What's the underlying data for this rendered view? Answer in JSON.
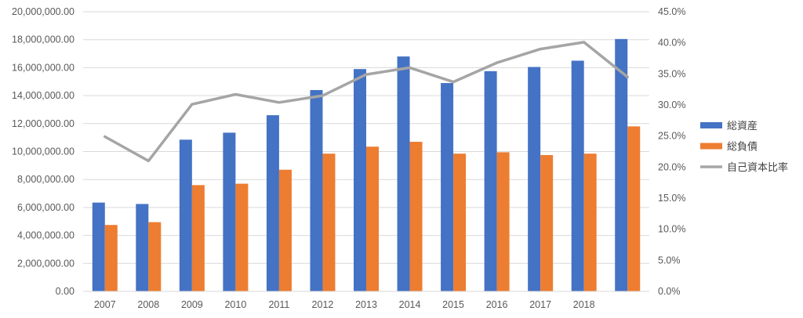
{
  "chart_data": {
    "type": "bar",
    "categories": [
      "2007",
      "2008",
      "2009",
      "2010",
      "2011",
      "2012",
      "2013",
      "2014",
      "2015",
      "2016",
      "2017",
      "2018",
      ""
    ],
    "series": [
      {
        "name": "総資産",
        "type": "bar",
        "axis": "left",
        "color": "#4472C4",
        "values": [
          6350000,
          6250000,
          10850000,
          11350000,
          12600000,
          14400000,
          15900000,
          16800000,
          14900000,
          15750000,
          16050000,
          16500000,
          18050000
        ]
      },
      {
        "name": "総負債",
        "type": "bar",
        "axis": "left",
        "color": "#ED7D31",
        "values": [
          4750000,
          4950000,
          7600000,
          7700000,
          8700000,
          9850000,
          10350000,
          10700000,
          9850000,
          9950000,
          9750000,
          9850000,
          11800000
        ]
      },
      {
        "name": "自己資本比率",
        "type": "line",
        "axis": "right",
        "color": "#A5A5A5",
        "values": [
          0.249,
          0.21,
          0.301,
          0.317,
          0.304,
          0.315,
          0.349,
          0.36,
          0.337,
          0.368,
          0.39,
          0.401,
          0.345
        ]
      }
    ],
    "left_axis": {
      "min": 0,
      "max": 20000000,
      "step": 2000000,
      "tick_labels": [
        "0.00",
        "2,000,000.00",
        "4,000,000.00",
        "6,000,000.00",
        "8,000,000.00",
        "10,000,000.00",
        "12,000,000.00",
        "14,000,000.00",
        "16,000,000.00",
        "18,000,000.00",
        "20,000,000.00"
      ]
    },
    "right_axis": {
      "min": 0,
      "max": 0.45,
      "step": 0.05,
      "tick_labels": [
        "0.0%",
        "5.0%",
        "10.0%",
        "15.0%",
        "20.0%",
        "25.0%",
        "30.0%",
        "35.0%",
        "40.0%",
        "45.0%"
      ]
    },
    "grid": true,
    "legend_position": "right",
    "title": "",
    "xlabel": "",
    "ylabel": ""
  }
}
